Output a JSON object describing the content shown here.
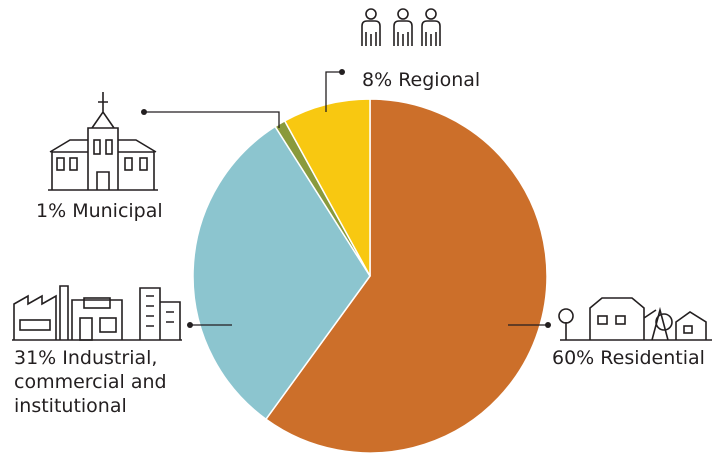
{
  "chart_data": {
    "type": "pie",
    "categories": [
      "Residential",
      "Industrial, commercial and institutional",
      "Municipal",
      "Regional"
    ],
    "values": [
      60,
      31,
      1,
      8
    ],
    "value_labels": [
      "60%",
      "31%",
      "1%",
      "8%"
    ],
    "colors": [
      "#cc6f2a",
      "#8cc5cf",
      "#8a9a3c",
      "#f8c811"
    ]
  }
}
